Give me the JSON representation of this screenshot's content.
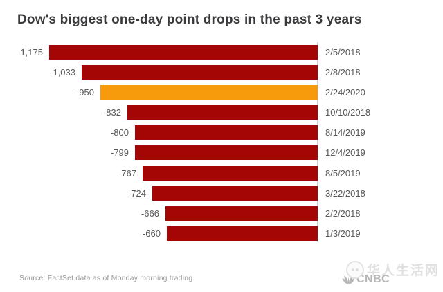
{
  "chart_data": {
    "type": "bar",
    "orientation": "horizontal",
    "title": "Dow's biggest one-day point drops in the past 3 years",
    "categories": [
      "2/5/2018",
      "2/8/2018",
      "2/24/2020",
      "10/10/2018",
      "8/14/2019",
      "12/4/2019",
      "8/5/2019",
      "3/22/2018",
      "2/2/2018",
      "1/3/2019"
    ],
    "values": [
      -1175,
      -1033,
      -950,
      -832,
      -800,
      -799,
      -767,
      -724,
      -666,
      -660
    ],
    "value_labels": [
      "-1,175",
      "-1,033",
      "-950",
      "-832",
      "-800",
      "-799",
      "-767",
      "-724",
      "-666",
      "-660"
    ],
    "highlight_index": 2,
    "xlim": [
      -1175,
      0
    ],
    "grid": false,
    "legend": "none",
    "colors": {
      "bar": "#a40606",
      "highlight": "#f79b0d",
      "axis": "#cfcfcf",
      "label": "#58585a",
      "title": "#3a3a3c"
    }
  },
  "footer": {
    "source": "Source: FactSet data as of Monday morning trading",
    "logo_text": "CNBC",
    "watermark_text": "华人生活网"
  }
}
